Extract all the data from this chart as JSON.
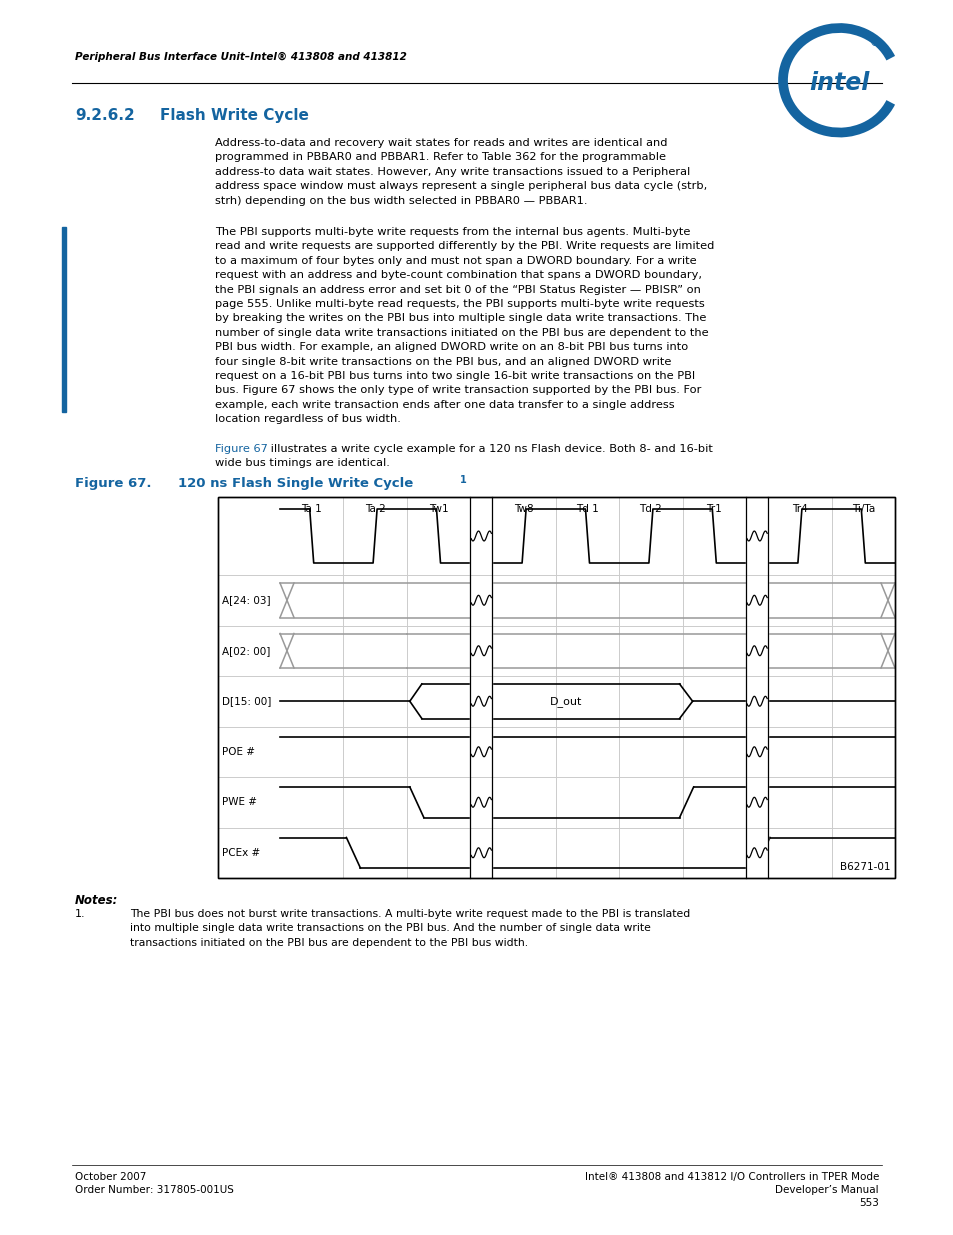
{
  "header_text": "Peripheral Bus Interface Unit–Intel® 413808 and 413812",
  "figure_label": "Figure 67.",
  "figure_title": "120 ns Flash Single Write Cycle",
  "figure_title_superscript": "1",
  "diagram_id": "B6271-01",
  "notes_title": "Notes:",
  "note_1": "The PBI bus does not burst write transactions. A multi-byte write request made to the PBI is translated\ninto multiple single data write transactions on the PBI bus. And the number of single data write\ntransactions initiated on the PBI bus are dependent to the PBI bus width.",
  "footer_left_1": "October 2007",
  "footer_left_2": "Order Number: 317805-001US",
  "footer_right_1": "Intel® 413808 and 413812 I/O Controllers in TPER Mode",
  "footer_right_2": "Developer’s Manual",
  "footer_right_3": "553",
  "col_labels": [
    "Ta 1",
    "Ta 2",
    "Tw1",
    "Tw8",
    "Td 1",
    "Td 2",
    "Tr1",
    "Tr4",
    "Ti/Ta"
  ],
  "row_labels": [
    "A[24: 03]",
    "A[02: 00]",
    "D[15: 00]",
    "POE #",
    "PWE #",
    "PCEx #"
  ],
  "blue_color": "#1464a0",
  "black": "#000000",
  "gray": "#999999",
  "lightgray": "#cccccc"
}
